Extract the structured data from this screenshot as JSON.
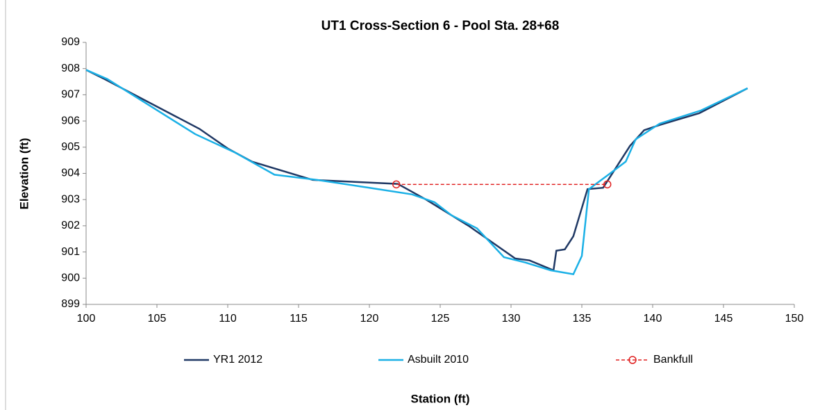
{
  "chart_data": {
    "type": "line",
    "title": "UT1 Cross-Section 6 - Pool Sta. 28+68",
    "x_label": "Station (ft)",
    "y_label": "Elevation (ft)",
    "xlim": [
      100,
      150
    ],
    "xticks": [
      100,
      105,
      110,
      115,
      120,
      125,
      130,
      135,
      140,
      145,
      150
    ],
    "ylim": [
      899,
      909
    ],
    "yticks": [
      899,
      900,
      901,
      902,
      903,
      904,
      905,
      906,
      907,
      908,
      909
    ],
    "legend": "bottom",
    "series": [
      {
        "name": "YR1 2012",
        "color": "#1f3864",
        "marker": "none",
        "dash": false,
        "x": [
          100,
          101.3,
          105,
          108,
          110,
          111.7,
          116,
          122,
          124,
          125.5,
          127,
          130.3,
          131.3,
          133,
          133.2,
          133.8,
          134.4,
          135.4,
          136.5,
          138.4,
          139.4,
          140.5,
          143.3,
          146.7
        ],
        "values": [
          907.95,
          907.6,
          906.55,
          905.7,
          904.95,
          904.45,
          903.75,
          903.6,
          903.0,
          902.5,
          902.0,
          900.75,
          900.68,
          900.3,
          901.05,
          901.1,
          901.6,
          903.4,
          903.45,
          905.05,
          905.65,
          905.85,
          906.3,
          907.25
        ]
      },
      {
        "name": "Asbuilt 2010",
        "color": "#1ab0e6",
        "marker": "none",
        "dash": false,
        "x": [
          100,
          101.5,
          107.7,
          110.5,
          113.3,
          116.3,
          120,
          123,
          124.6,
          125.8,
          127.6,
          129.5,
          131,
          132.8,
          134.4,
          135,
          135.5,
          137,
          138.1,
          138.8,
          140.5,
          143.4,
          146.7
        ],
        "values": [
          907.95,
          907.6,
          905.5,
          904.8,
          903.95,
          903.75,
          903.45,
          903.2,
          902.9,
          902.4,
          901.9,
          900.8,
          900.6,
          900.3,
          900.15,
          900.85,
          903.4,
          904.0,
          904.45,
          905.3,
          905.9,
          906.4,
          907.25
        ]
      },
      {
        "name": "Bankfull",
        "color": "#e02020",
        "marker": "circle",
        "dash": true,
        "x": [
          121.9,
          136.8
        ],
        "values": [
          903.58,
          903.58
        ]
      }
    ]
  }
}
